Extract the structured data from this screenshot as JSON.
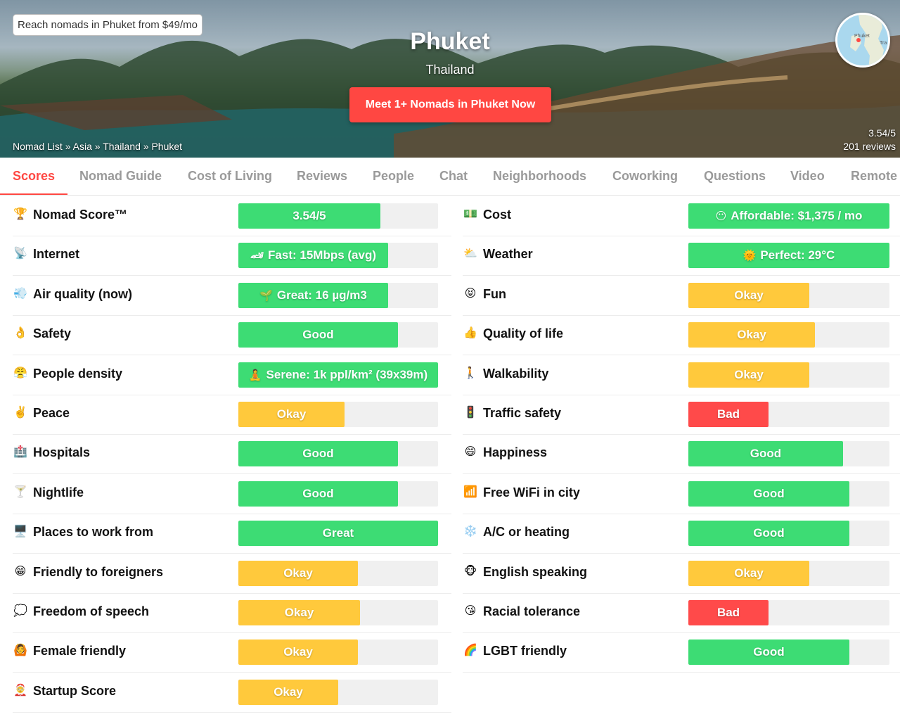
{
  "hero": {
    "promo": "Reach nomads in Phuket from $49/mo",
    "city": "Phuket",
    "country": "Thailand",
    "cta": "Meet 1+ Nomads in Phuket Now",
    "breadcrumb": [
      "Nomad List",
      "Asia",
      "Thailand",
      "Phuket"
    ],
    "breadcrumb_sep": "»",
    "map_labels": [
      "Phuket",
      "Tra"
    ],
    "rating": "3.54/5",
    "reviews": "201 reviews"
  },
  "tabs": [
    "Scores",
    "Nomad Guide",
    "Cost of Living",
    "Reviews",
    "People",
    "Chat",
    "Neighborhoods",
    "Coworking",
    "Questions",
    "Video",
    "Remote"
  ],
  "active_tab": "Scores",
  "colors": {
    "green": "#3ddc74",
    "yellow": "#ffc93c",
    "red": "#ff4a4a",
    "track": "#f0f0f0",
    "accent": "#ff4742"
  },
  "scores_left": [
    {
      "icon": "🏆",
      "icon_name": "trophy-icon",
      "label": "Nomad Score™",
      "value": "3.54/5",
      "emoji": "",
      "level": 0.71,
      "color": "green",
      "text_span": "fill"
    },
    {
      "icon": "📡",
      "icon_name": "satellite-icon",
      "label": "Internet",
      "value": "Fast: 15Mbps (avg)",
      "emoji": "🏎",
      "level": 0.75,
      "color": "green",
      "text_span": "fill"
    },
    {
      "icon": "💨",
      "icon_name": "wind-icon",
      "label": "Air quality (now)",
      "value": "Great: 16 µg/m3",
      "emoji": "🌱",
      "level": 0.75,
      "color": "green",
      "text_span": "fill"
    },
    {
      "icon": "👌",
      "icon_name": "ok-hand-icon",
      "label": "Safety",
      "value": "Good",
      "emoji": "",
      "level": 0.8,
      "color": "green",
      "text_span": "fill"
    },
    {
      "icon": "😤",
      "icon_name": "crowd-face-icon",
      "label": "People density",
      "value": "Serene: 1k ppl/km² (39x39m)",
      "emoji": "🧘",
      "level": 1.0,
      "color": "green",
      "text_span": "fill"
    },
    {
      "icon": "✌️",
      "icon_name": "peace-hand-icon",
      "label": "Peace",
      "value": "Okay",
      "emoji": "",
      "level": 0.53,
      "color": "yellow",
      "text_span": "fill"
    },
    {
      "icon": "🏥",
      "icon_name": "hospital-icon",
      "label": "Hospitals",
      "value": "Good",
      "emoji": "",
      "level": 0.8,
      "color": "green",
      "text_span": "fill"
    },
    {
      "icon": "🍸",
      "icon_name": "cocktail-icon",
      "label": "Nightlife",
      "value": "Good",
      "emoji": "",
      "level": 0.8,
      "color": "green",
      "text_span": "fill"
    },
    {
      "icon": "🖥️",
      "icon_name": "desktop-icon",
      "label": "Places to work from",
      "value": "Great",
      "emoji": "",
      "level": 1.0,
      "color": "green",
      "text_span": "fill"
    },
    {
      "icon": "😁",
      "icon_name": "grin-icon",
      "label": "Friendly to foreigners",
      "value": "Okay",
      "emoji": "",
      "level": 0.6,
      "color": "yellow",
      "text_span": "fill"
    },
    {
      "icon": "💭",
      "icon_name": "thought-bubble-icon",
      "label": "Freedom of speech",
      "value": "Okay",
      "emoji": "",
      "level": 0.61,
      "color": "yellow",
      "text_span": "fill"
    },
    {
      "icon": "🙆",
      "icon_name": "woman-icon",
      "label": "Female friendly",
      "value": "Okay",
      "emoji": "",
      "level": 0.6,
      "color": "yellow",
      "text_span": "fill"
    },
    {
      "icon": "🤶",
      "icon_name": "elf-icon",
      "label": "Startup Score",
      "value": "Okay",
      "emoji": "",
      "level": 0.5,
      "color": "yellow",
      "text_span": "fill"
    }
  ],
  "scores_right": [
    {
      "icon": "💵",
      "icon_name": "money-icon",
      "label": "Cost",
      "value": "Affordable: $1,375 / mo",
      "emoji": "😶",
      "level": 1.0,
      "color": "green",
      "text_span": "fill"
    },
    {
      "icon": "⛅",
      "icon_name": "cloud-sun-icon",
      "label": "Weather",
      "value": "Perfect: 29°C",
      "emoji": "🌞",
      "level": 1.0,
      "color": "green",
      "text_span": "fill"
    },
    {
      "icon": "😝",
      "icon_name": "tongue-face-icon",
      "label": "Fun",
      "value": "Okay",
      "emoji": "",
      "level": 0.6,
      "color": "yellow",
      "text_span": "fill"
    },
    {
      "icon": "👍",
      "icon_name": "thumbs-up-icon",
      "label": "Quality of life",
      "value": "Okay",
      "emoji": "",
      "level": 0.63,
      "color": "yellow",
      "text_span": "fill"
    },
    {
      "icon": "🚶",
      "icon_name": "walking-icon",
      "label": "Walkability",
      "value": "Okay",
      "emoji": "",
      "level": 0.6,
      "color": "yellow",
      "text_span": "fill"
    },
    {
      "icon": "🚦",
      "icon_name": "traffic-light-icon",
      "label": "Traffic safety",
      "value": "Bad",
      "emoji": "",
      "level": 0.4,
      "color": "red",
      "text_span": "fill"
    },
    {
      "icon": "😄",
      "icon_name": "smile-icon",
      "label": "Happiness",
      "value": "Good",
      "emoji": "",
      "level": 0.77,
      "color": "green",
      "text_span": "fill"
    },
    {
      "icon": "📶",
      "icon_name": "signal-icon",
      "label": "Free WiFi in city",
      "value": "Good",
      "emoji": "",
      "level": 0.8,
      "color": "green",
      "text_span": "fill"
    },
    {
      "icon": "❄️",
      "icon_name": "snowflake-icon",
      "label": "A/C or heating",
      "value": "Good",
      "emoji": "",
      "level": 0.8,
      "color": "green",
      "text_span": "fill"
    },
    {
      "icon": "🐵",
      "icon_name": "monkey-icon",
      "label": "English speaking",
      "value": "Okay",
      "emoji": "",
      "level": 0.6,
      "color": "yellow",
      "text_span": "fill"
    },
    {
      "icon": "😘",
      "icon_name": "kiss-face-icon",
      "label": "Racial tolerance",
      "value": "Bad",
      "emoji": "",
      "level": 0.4,
      "color": "red",
      "text_span": "fill"
    },
    {
      "icon": "🌈",
      "icon_name": "rainbow-icon",
      "label": "LGBT friendly",
      "value": "Good",
      "emoji": "",
      "level": 0.8,
      "color": "green",
      "text_span": "fill"
    }
  ]
}
